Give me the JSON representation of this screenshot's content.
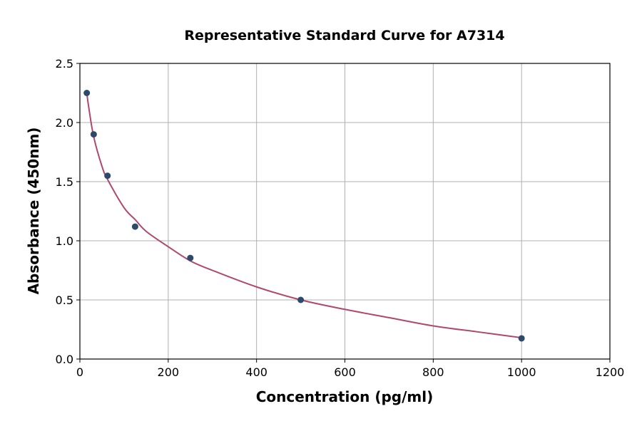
{
  "chart_data": {
    "type": "scatter",
    "title": "Representative Standard Curve for A7314",
    "xlabel": "Concentration (pg/ml)",
    "ylabel": "Absorbance (450nm)",
    "xlim": [
      0,
      1200
    ],
    "ylim": [
      0,
      2.5
    ],
    "xticks": [
      "0",
      "200",
      "400",
      "600",
      "800",
      "1000",
      "1200"
    ],
    "yticks": [
      "0.0",
      "0.5",
      "1.0",
      "1.5",
      "2.0",
      "2.5"
    ],
    "grid": true,
    "points": [
      {
        "x": 15.6,
        "y": 2.25
      },
      {
        "x": 31.25,
        "y": 1.9
      },
      {
        "x": 62.5,
        "y": 1.55
      },
      {
        "x": 125,
        "y": 1.12
      },
      {
        "x": 250,
        "y": 0.855
      },
      {
        "x": 500,
        "y": 0.5
      },
      {
        "x": 1000,
        "y": 0.175
      }
    ],
    "fit_curve": [
      [
        15.6,
        2.25
      ],
      [
        20,
        2.13
      ],
      [
        31.25,
        1.88
      ],
      [
        50,
        1.63
      ],
      [
        62.5,
        1.52
      ],
      [
        100,
        1.28
      ],
      [
        125,
        1.18
      ],
      [
        150,
        1.08
      ],
      [
        200,
        0.95
      ],
      [
        250,
        0.83
      ],
      [
        300,
        0.75
      ],
      [
        400,
        0.61
      ],
      [
        500,
        0.5
      ],
      [
        600,
        0.42
      ],
      [
        700,
        0.35
      ],
      [
        800,
        0.28
      ],
      [
        900,
        0.23
      ],
      [
        1000,
        0.18
      ]
    ],
    "colors": {
      "points": "#2e4a6b",
      "curve": "#b0486e",
      "grid": "#b0b0b0"
    }
  }
}
